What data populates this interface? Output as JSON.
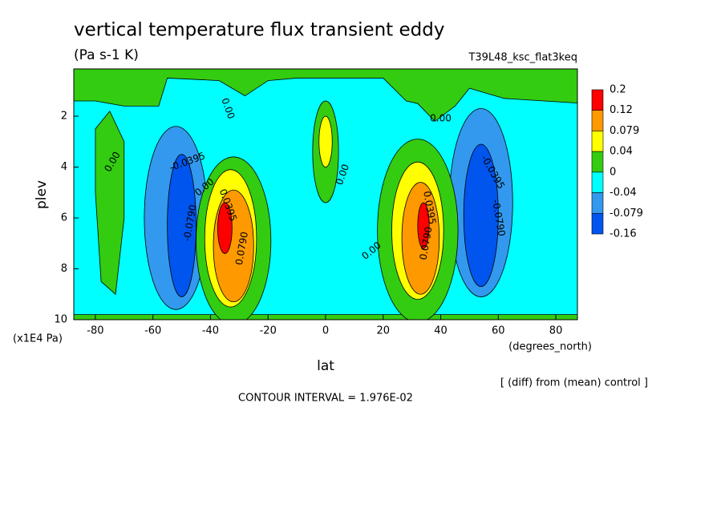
{
  "chart_data": {
    "type": "contour",
    "title": "vertical temperature flux transient eddy",
    "subtitle": "(Pa s-1 K)",
    "dataset": "T39L48_ksc_flat3keq",
    "x_label": "lat",
    "x_units": "(degrees_north)",
    "y_label": "plev",
    "y_units": "(x1E4 Pa)",
    "note": "[ (diff) from (mean) control ]",
    "contour_interval": "CONTOUR INTERVAL = 1.976E-02",
    "xlim": [
      -87.5,
      87.5
    ],
    "ylim": [
      10,
      0.14
    ],
    "xticks": [
      -80,
      -60,
      -40,
      -20,
      0,
      20,
      40,
      60,
      80
    ],
    "yticks": [
      2,
      4,
      6,
      8,
      10
    ],
    "levels": [
      0.2,
      0.12,
      0.079,
      0.04,
      0,
      -0.04,
      -0.079,
      -0.16
    ],
    "colors": [
      "#ff0000",
      "#ff9900",
      "#ffff00",
      "#33cc11",
      "#00ffff",
      "#3399ee",
      "#0055ee"
    ],
    "contour_labels": [
      "0.00",
      "0.00",
      "0.00",
      "0.00",
      "0.00",
      "0.00",
      "-0.0395",
      "-0.0790",
      "0.0395",
      "0.0790",
      "0.0395",
      "0.0790",
      "-0.0395",
      "-0.0790"
    ]
  }
}
